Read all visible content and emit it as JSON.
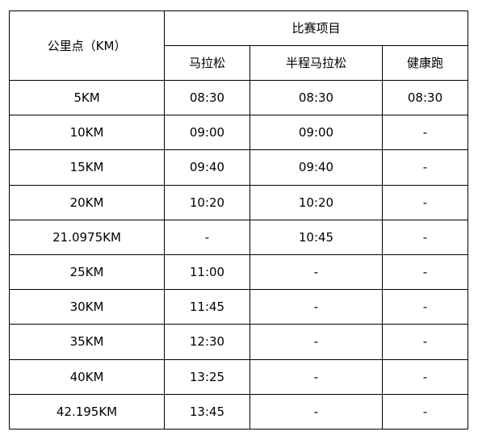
{
  "table": {
    "header": {
      "distance_label": "公里点（KM）",
      "group_label": "比赛项目",
      "events": [
        "马拉松",
        "半程马拉松",
        "健康跑"
      ]
    },
    "rows": [
      {
        "km": "5KM",
        "marathon": "08:30",
        "half": "08:30",
        "fun": "08:30"
      },
      {
        "km": "10KM",
        "marathon": "09:00",
        "half": "09:00",
        "fun": "-"
      },
      {
        "km": "15KM",
        "marathon": "09:40",
        "half": "09:40",
        "fun": "-"
      },
      {
        "km": "20KM",
        "marathon": "10:20",
        "half": "10:20",
        "fun": "-"
      },
      {
        "km": "21.0975KM",
        "marathon": "-",
        "half": "10:45",
        "fun": "-"
      },
      {
        "km": "25KM",
        "marathon": "11:00",
        "half": "-",
        "fun": "-"
      },
      {
        "km": "30KM",
        "marathon": "11:45",
        "half": "-",
        "fun": "-"
      },
      {
        "km": "35KM",
        "marathon": "12:30",
        "half": "-",
        "fun": "-"
      },
      {
        "km": "40KM",
        "marathon": "13:25",
        "half": "-",
        "fun": "-"
      },
      {
        "km": "42.195KM",
        "marathon": "13:45",
        "half": "-",
        "fun": "-"
      }
    ]
  }
}
